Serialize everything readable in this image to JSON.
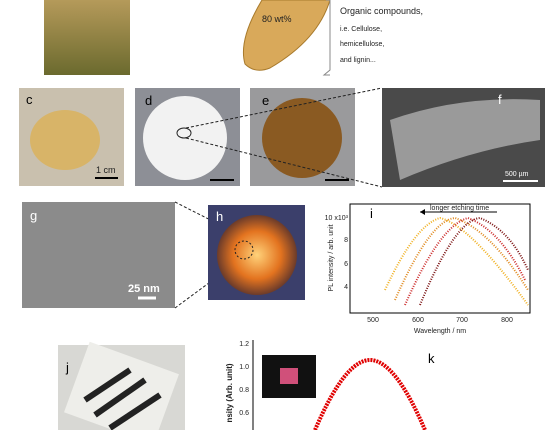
{
  "top": {
    "grain_label": "80 wt%",
    "composition": [
      "Organic compounds,",
      "i.e. Cellulose,",
      "hemicellulose,",
      "and lignin..."
    ]
  },
  "panels": {
    "c": {
      "letter": "c",
      "scale": "1 cm"
    },
    "d": {
      "letter": "d"
    },
    "e": {
      "letter": "e"
    },
    "f": {
      "letter": "f",
      "scale": "500 µm"
    },
    "g": {
      "letter": "g",
      "scale": "25 nm"
    },
    "h": {
      "letter": "h"
    },
    "i": {
      "letter": "i",
      "annotation": "longer etching time",
      "ylabel": "PL intensity / arb. unit",
      "yticks": [
        "10 x10³",
        "8",
        "6",
        "4"
      ],
      "xlabel": "Wavelength / nm",
      "xticks": [
        "500",
        "600",
        "700",
        "800"
      ]
    },
    "j": {
      "letter": "j"
    },
    "k": {
      "letter": "k",
      "ylabel": "nsity (Arb. unit)",
      "yticks": [
        "1.2",
        "1.0",
        "0.8",
        "0.6"
      ]
    }
  }
}
